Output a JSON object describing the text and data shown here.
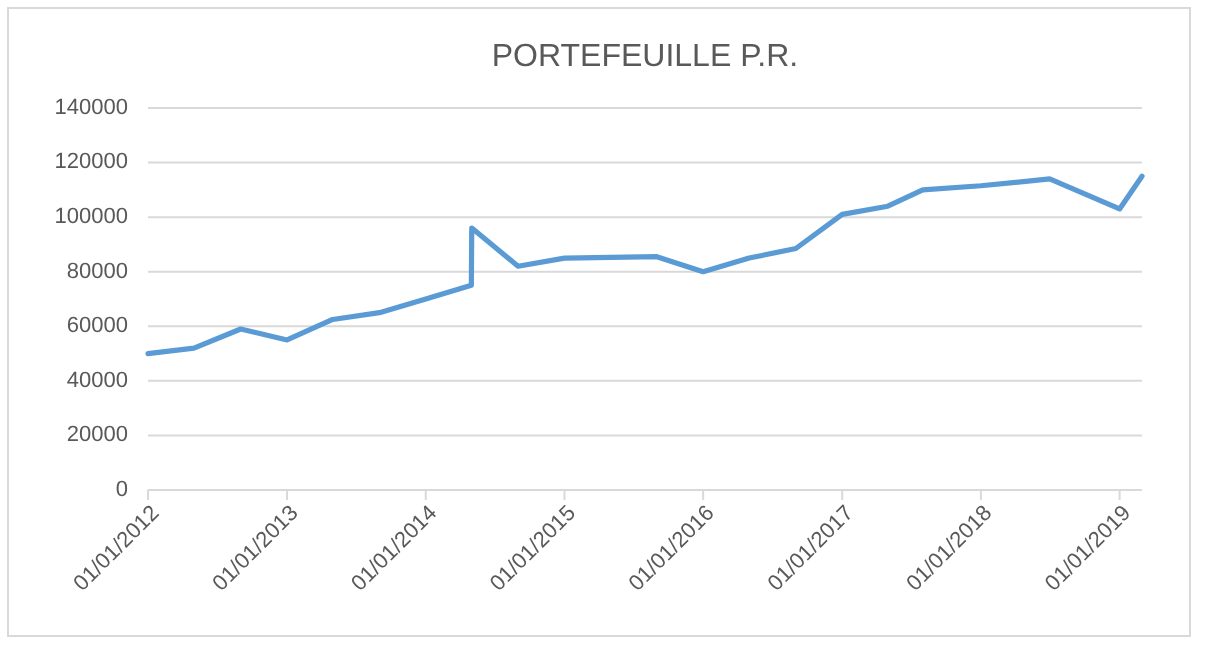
{
  "chart_data": {
    "type": "line",
    "title": "PORTEFEUILLE P.R.",
    "x": [
      "2012-01-01",
      "2012-05-01",
      "2012-09-01",
      "2013-01-01",
      "2013-05-01",
      "2013-09-01",
      "2014-01-01",
      "2014-05-01",
      "2014-05-02",
      "2014-09-01",
      "2015-01-01",
      "2015-09-01",
      "2016-01-01",
      "2016-05-01",
      "2016-09-01",
      "2017-01-01",
      "2017-05-01",
      "2017-08-01",
      "2018-01-01",
      "2018-07-01",
      "2019-01-01",
      "2019-03-01"
    ],
    "series": [
      {
        "color": "#5b9bd5",
        "values": [
          50000,
          52000,
          59000,
          55000,
          62500,
          65000,
          70000,
          75000,
          96000,
          82000,
          85000,
          85500,
          80000,
          85000,
          88500,
          101000,
          104000,
          110000,
          111500,
          114000,
          103000,
          115000
        ]
      }
    ],
    "xlim": [
      "2012-01-01",
      "2019-03-01"
    ],
    "xticks": [
      {
        "value": "2012-01-01",
        "label": "01/01/2012"
      },
      {
        "value": "2013-01-01",
        "label": "01/01/2013"
      },
      {
        "value": "2014-01-01",
        "label": "01/01/2014"
      },
      {
        "value": "2015-01-01",
        "label": "01/01/2015"
      },
      {
        "value": "2016-01-01",
        "label": "01/01/2016"
      },
      {
        "value": "2017-01-01",
        "label": "01/01/2017"
      },
      {
        "value": "2018-01-01",
        "label": "01/01/2018"
      },
      {
        "value": "2019-01-01",
        "label": "01/01/2019"
      }
    ],
    "ylim": [
      0,
      140000
    ],
    "yticks": [
      0,
      20000,
      40000,
      60000,
      80000,
      100000,
      120000,
      140000
    ],
    "grid": "y",
    "marker": "none",
    "line_style": "solid"
  }
}
